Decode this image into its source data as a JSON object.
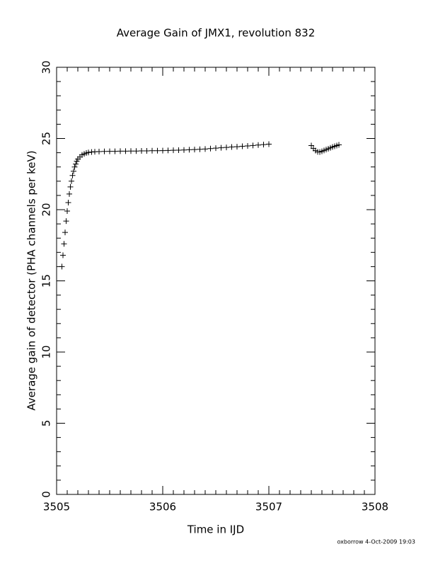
{
  "chart_data": {
    "type": "scatter",
    "title": "Average Gain of JMX1, revolution 832",
    "xlabel": "Time in IJD",
    "ylabel": "Average gain of detector (PHA channels per keV)",
    "footer": "oxborrow  4-Oct-2009 19:03",
    "marker": "+",
    "color": "#000000",
    "xlim": [
      3505,
      3508
    ],
    "ylim": [
      0,
      30
    ],
    "xticks": [
      3505,
      3506,
      3507,
      3508
    ],
    "yticks": [
      0,
      5,
      10,
      15,
      20,
      25,
      30
    ],
    "xminorticks": [
      3505.1,
      3505.2,
      3505.3,
      3505.4,
      3505.5,
      3505.6,
      3505.7,
      3505.8,
      3505.9,
      3506.1,
      3506.2,
      3506.3,
      3506.4,
      3506.5,
      3506.6,
      3506.7,
      3506.8,
      3506.9,
      3507.1,
      3507.2,
      3507.3,
      3507.4,
      3507.5,
      3507.6,
      3507.7,
      3507.8,
      3507.9
    ],
    "yminorticks": [
      1,
      2,
      3,
      4,
      6,
      7,
      8,
      9,
      11,
      12,
      13,
      14,
      16,
      17,
      18,
      19,
      21,
      22,
      23,
      24,
      26,
      27,
      28,
      29
    ],
    "x": [
      3505.05,
      3505.06,
      3505.07,
      3505.08,
      3505.09,
      3505.1,
      3505.11,
      3505.12,
      3505.13,
      3505.14,
      3505.15,
      3505.16,
      3505.17,
      3505.18,
      3505.19,
      3505.2,
      3505.22,
      3505.24,
      3505.26,
      3505.28,
      3505.3,
      3505.33,
      3505.36,
      3505.4,
      3505.45,
      3505.5,
      3505.55,
      3505.6,
      3505.65,
      3505.7,
      3505.75,
      3505.8,
      3505.85,
      3505.9,
      3505.95,
      3506.0,
      3506.05,
      3506.1,
      3506.15,
      3506.2,
      3506.25,
      3506.3,
      3506.35,
      3506.4,
      3506.45,
      3506.5,
      3506.55,
      3506.6,
      3506.65,
      3506.7,
      3506.75,
      3506.8,
      3506.85,
      3506.9,
      3506.95,
      3507.0,
      3507.4,
      3507.42,
      3507.44,
      3507.46,
      3507.48,
      3507.5,
      3507.52,
      3507.54,
      3507.56,
      3507.58,
      3507.6,
      3507.62,
      3507.64,
      3507.66
    ],
    "y": [
      16.0,
      16.8,
      17.6,
      18.4,
      19.2,
      19.9,
      20.5,
      21.1,
      21.6,
      22.0,
      22.4,
      22.7,
      23.0,
      23.2,
      23.4,
      23.55,
      23.7,
      23.85,
      23.92,
      23.98,
      24.02,
      24.05,
      24.07,
      24.08,
      24.09,
      24.1,
      24.1,
      24.11,
      24.11,
      24.12,
      24.12,
      24.13,
      24.13,
      24.14,
      24.14,
      24.15,
      24.16,
      24.17,
      24.18,
      24.19,
      24.21,
      24.22,
      24.24,
      24.26,
      24.29,
      24.32,
      24.35,
      24.37,
      24.4,
      24.42,
      24.45,
      24.48,
      24.51,
      24.54,
      24.57,
      24.6,
      24.5,
      24.3,
      24.15,
      24.06,
      24.05,
      24.1,
      24.16,
      24.22,
      24.28,
      24.34,
      24.4,
      24.45,
      24.5,
      24.55
    ]
  }
}
